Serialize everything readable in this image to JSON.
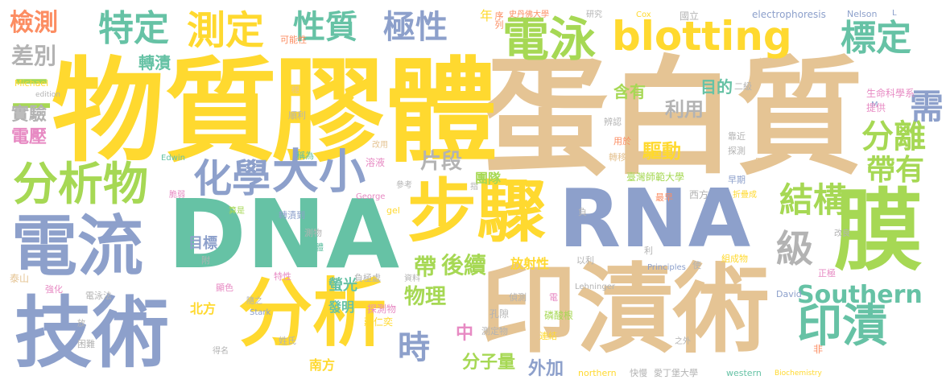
{
  "palette": {
    "tan": "#e5c494",
    "yellow": "#ffd92f",
    "blue": "#8da0cb",
    "green": "#66c2a5",
    "lime": "#a6d854",
    "orange": "#fc8d62",
    "pink": "#e78ac3",
    "gray": "#b3b3b3"
  },
  "words": [
    {
      "text": "蛋白質",
      "color": "tan"
    },
    {
      "text": "物質",
      "color": "yellow"
    },
    {
      "text": "膠體",
      "color": "yellow"
    },
    {
      "text": "DNA",
      "color": "green"
    },
    {
      "text": "RNA",
      "color": "blue"
    },
    {
      "text": "印漬術",
      "color": "tan"
    },
    {
      "text": "技術",
      "color": "blue"
    },
    {
      "text": "電流",
      "color": "blue"
    },
    {
      "text": "分析",
      "color": "yellow"
    },
    {
      "text": "步驟",
      "color": "yellow"
    },
    {
      "text": "膜",
      "color": "lime"
    },
    {
      "text": "blotting",
      "color": "yellow"
    },
    {
      "text": "分析物",
      "color": "lime"
    },
    {
      "text": "化學",
      "color": "blue"
    },
    {
      "text": "大小",
      "color": "blue"
    },
    {
      "text": "印漬",
      "color": "green"
    },
    {
      "text": "電泳",
      "color": "lime"
    },
    {
      "text": "標定",
      "color": "green"
    },
    {
      "text": "特定",
      "color": "green"
    },
    {
      "text": "測定",
      "color": "yellow"
    },
    {
      "text": "性質",
      "color": "green"
    },
    {
      "text": "極性",
      "color": "blue"
    },
    {
      "text": "檢測",
      "color": "orange"
    },
    {
      "text": "差別",
      "color": "gray"
    },
    {
      "text": "二",
      "color": "lime"
    },
    {
      "text": "實驗",
      "color": "gray"
    },
    {
      "text": "電壓",
      "color": "pink"
    },
    {
      "text": "結構",
      "color": "lime"
    },
    {
      "text": "Southern",
      "color": "green"
    },
    {
      "text": "級",
      "color": "gray"
    },
    {
      "text": "分離",
      "color": "lime"
    },
    {
      "text": "帶有",
      "color": "lime"
    },
    {
      "text": "需",
      "color": "blue"
    },
    {
      "text": "時",
      "color": "blue"
    },
    {
      "text": "物理",
      "color": "lime"
    },
    {
      "text": "帶",
      "color": "lime"
    },
    {
      "text": "後續",
      "color": "lime"
    },
    {
      "text": "片段",
      "color": "gray"
    },
    {
      "text": "利用",
      "color": "gray"
    },
    {
      "text": "驅動",
      "color": "yellow"
    },
    {
      "text": "含有",
      "color": "lime"
    },
    {
      "text": "目的",
      "color": "green"
    },
    {
      "text": "分子量",
      "color": "lime"
    },
    {
      "text": "外加",
      "color": "blue"
    },
    {
      "text": "中",
      "color": "pink"
    },
    {
      "text": "目標",
      "color": "blue"
    },
    {
      "text": "螢光",
      "color": "green"
    },
    {
      "text": "發明",
      "color": "green"
    },
    {
      "text": "放射性",
      "color": "yellow"
    },
    {
      "text": "團隊",
      "color": "lime"
    },
    {
      "text": "南方",
      "color": "yellow"
    },
    {
      "text": "北方",
      "color": "yellow"
    },
    {
      "text": "轉漬",
      "color": "green"
    },
    {
      "text": "年",
      "color": "yellow"
    },
    {
      "text": "序列",
      "color": "orange"
    },
    {
      "text": "史丹佛大學",
      "color": "orange"
    },
    {
      "text": "研究",
      "color": "gray"
    },
    {
      "text": "Cox",
      "color": "yellow"
    },
    {
      "text": "國立",
      "color": "gray"
    },
    {
      "text": "electrophoresis",
      "color": "blue"
    },
    {
      "text": "Nelson",
      "color": "blue"
    },
    {
      "text": "L",
      "color": "blue"
    },
    {
      "text": "可能性",
      "color": "orange"
    },
    {
      "text": "Michael",
      "color": "yellow"
    },
    {
      "text": "edition",
      "color": "gray"
    },
    {
      "text": "穩",
      "color": "tan"
    },
    {
      "text": "順利",
      "color": "gray"
    },
    {
      "text": "改用",
      "color": "tan"
    },
    {
      "text": "溶液",
      "color": "pink"
    },
    {
      "text": "稱為",
      "color": "green"
    },
    {
      "text": "Edwin",
      "color": "green"
    },
    {
      "text": "指",
      "color": "gray"
    },
    {
      "text": "檢測物",
      "color": "tan"
    },
    {
      "text": "二級",
      "color": "gray"
    },
    {
      "text": "辨認",
      "color": "gray"
    },
    {
      "text": "生命科學系",
      "color": "pink"
    },
    {
      "text": "M",
      "color": "blue"
    },
    {
      "text": "提供",
      "color": "pink"
    },
    {
      "text": "用於",
      "color": "orange"
    },
    {
      "text": "靠近",
      "color": "gray"
    },
    {
      "text": "探測",
      "color": "gray"
    },
    {
      "text": "同理",
      "color": "tan"
    },
    {
      "text": "轉移",
      "color": "tan"
    },
    {
      "text": "臺灣師範大學",
      "color": "lime"
    },
    {
      "text": "西方",
      "color": "gray"
    },
    {
      "text": "早期",
      "color": "blue"
    },
    {
      "text": "最早",
      "color": "orange"
    },
    {
      "text": "折疊成",
      "color": "yellow"
    },
    {
      "text": "負",
      "color": "gray"
    },
    {
      "text": "George",
      "color": "pink"
    },
    {
      "text": "參考",
      "color": "gray"
    },
    {
      "text": "gel",
      "color": "yellow"
    },
    {
      "text": "算是",
      "color": "lime"
    },
    {
      "text": "轉漬到",
      "color": "blue"
    },
    {
      "text": "脆弱",
      "color": "pink"
    },
    {
      "text": "測物",
      "color": "gray"
    },
    {
      "text": "抗體",
      "color": "green"
    },
    {
      "text": "附",
      "color": "gray"
    },
    {
      "text": "以利",
      "color": "gray"
    },
    {
      "text": "利",
      "color": "gray"
    },
    {
      "text": "改良",
      "color": "gray"
    },
    {
      "text": "組成物",
      "color": "yellow"
    },
    {
      "text": "Principles",
      "color": "blue"
    },
    {
      "text": "使",
      "color": "gray"
    },
    {
      "text": "正極",
      "color": "pink"
    },
    {
      "text": "泰山",
      "color": "tan"
    },
    {
      "text": "強化",
      "color": "pink"
    },
    {
      "text": "電泳法",
      "color": "gray"
    },
    {
      "text": "顯色",
      "color": "pink"
    },
    {
      "text": "特性",
      "color": "pink"
    },
    {
      "text": "資料",
      "color": "gray"
    },
    {
      "text": "負極處",
      "color": "gray"
    },
    {
      "text": "偵測",
      "color": "gray"
    },
    {
      "text": "Lehninger",
      "color": "gray"
    },
    {
      "text": "電",
      "color": "pink"
    },
    {
      "text": "David",
      "color": "blue"
    },
    {
      "text": "隨之",
      "color": "gray"
    },
    {
      "text": "Stark",
      "color": "blue"
    },
    {
      "text": "探測物",
      "color": "pink"
    },
    {
      "text": "孔隙",
      "color": "gray"
    },
    {
      "text": "磷酸根",
      "color": "lime"
    },
    {
      "text": "放",
      "color": "gray"
    },
    {
      "text": "困難",
      "color": "gray"
    },
    {
      "text": "莊仁奕",
      "color": "yellow"
    },
    {
      "text": "測定物",
      "color": "gray"
    },
    {
      "text": "連結",
      "color": "yellow"
    },
    {
      "text": "之外",
      "color": "gray"
    },
    {
      "text": "非",
      "color": "orange"
    },
    {
      "text": "得名",
      "color": "gray"
    },
    {
      "text": "姓氏",
      "color": "gray"
    },
    {
      "text": "northern",
      "color": "yellow"
    },
    {
      "text": "快慢",
      "color": "gray"
    },
    {
      "text": "愛丁堡大學",
      "color": "gray"
    },
    {
      "text": "western",
      "color": "green"
    },
    {
      "text": "Biochemistry",
      "color": "yellow"
    }
  ]
}
